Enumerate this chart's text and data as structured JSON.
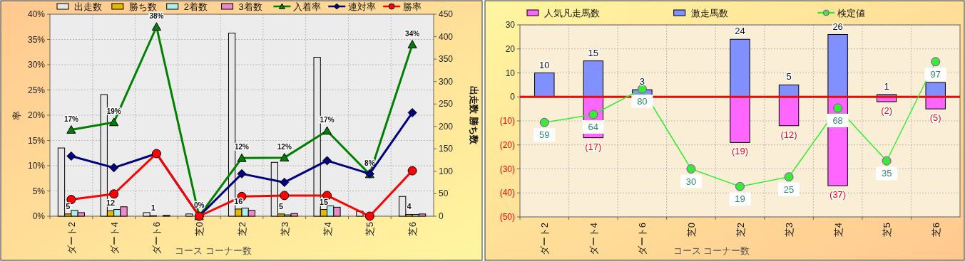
{
  "chart_data": [
    {
      "type": "bar",
      "xlabel": "コース コーナー数",
      "ylabel": "率",
      "y2label": "出走数 勝ち数",
      "categories": [
        "ダート2",
        "ダート4",
        "ダート6",
        "芝0",
        "芝2",
        "芝3",
        "芝4",
        "芝5",
        "芝6"
      ],
      "series": [
        {
          "name": "出走数",
          "color": "#e8e8e8",
          "axis": "y2",
          "values": [
            152,
            271,
            8,
            5,
            408,
            120,
            354,
            11,
            44
          ]
        },
        {
          "name": "勝ち数",
          "color": "#e6b800",
          "axis": "y2",
          "values": [
            5,
            12,
            1,
            0,
            16,
            5,
            15,
            0,
            4
          ],
          "value_labels": [
            "5",
            "12",
            "1",
            null,
            "16",
            "5",
            "15",
            null,
            "4"
          ]
        },
        {
          "name": "2着数",
          "color": "#aeeeee",
          "axis": "y2",
          "values": [
            13,
            15,
            0,
            0,
            18,
            3,
            23,
            0,
            4
          ]
        },
        {
          "name": "3着数",
          "color": "#ee88cc",
          "axis": "y2",
          "values": [
            8,
            21,
            2,
            0,
            13,
            6,
            20,
            0,
            5
          ]
        },
        {
          "name": "入着率",
          "type": "line",
          "color": "#008000",
          "marker": "triangle",
          "values": [
            17.1,
            18.6,
            37.5,
            0,
            11.5,
            11.6,
            16.9,
            8.3,
            34.0
          ],
          "value_labels": [
            "17%",
            "19%",
            "38%",
            "0%",
            "12%",
            "12%",
            "17%",
            "8%",
            "34%"
          ]
        },
        {
          "name": "連対率",
          "type": "line",
          "color": "#000080",
          "marker": "diamond",
          "values": [
            11.9,
            9.6,
            12.4,
            0,
            8.4,
            6.7,
            11.0,
            8.4,
            20.5
          ]
        },
        {
          "name": "勝率",
          "type": "line",
          "color": "#ff0000",
          "marker": "circle",
          "values": [
            3.3,
            4.4,
            12.4,
            0,
            3.9,
            4.1,
            4.1,
            0,
            9.0
          ]
        }
      ],
      "ylim": [
        0,
        40
      ],
      "yticks": [
        {
          "value": 0,
          "label": "0%"
        },
        {
          "value": 5,
          "label": "5%"
        },
        {
          "value": 10,
          "label": "10%"
        },
        {
          "value": 15,
          "label": "15%"
        },
        {
          "value": 20,
          "label": "20%"
        },
        {
          "value": 25,
          "label": "25%"
        },
        {
          "value": 30,
          "label": "30%"
        },
        {
          "value": 35,
          "label": "35%"
        },
        {
          "value": 40,
          "label": "40%"
        }
      ],
      "y2lim": [
        0,
        450
      ],
      "y2ticks": [
        0,
        50,
        100,
        150,
        200,
        250,
        300,
        350,
        400,
        450
      ],
      "grid": true,
      "legend": "top"
    },
    {
      "type": "bar",
      "xlabel": "コース コーナー数",
      "stacked": true,
      "categories": [
        "ダート2",
        "ダート4",
        "ダート6",
        "芝0",
        "芝2",
        "芝3",
        "芝4",
        "芝5",
        "芝6"
      ],
      "series": [
        {
          "name": "人気凡走馬数",
          "color": "#ff66ff",
          "values": [
            0,
            -17,
            0,
            0,
            -19,
            -12,
            -37,
            -2,
            -5
          ],
          "value_labels": [
            null,
            "(17)",
            null,
            null,
            "(19)",
            "(12)",
            "(37)",
            "(2)",
            "(5)"
          ]
        },
        {
          "name": "激走馬数",
          "color": "#8090ff",
          "values": [
            10,
            15,
            3,
            0,
            24,
            5,
            26,
            1,
            6
          ],
          "value_labels": [
            "10",
            "15",
            "3",
            null,
            "24",
            "5",
            "26",
            "1",
            null
          ]
        },
        {
          "name": "検定値",
          "type": "line",
          "axis": "y2",
          "color": "#33ee33",
          "marker": "circle",
          "values": [
            59,
            64,
            80,
            30,
            19,
            25,
            68,
            35,
            97
          ],
          "data_labels": true
        }
      ],
      "ylim": [
        -50,
        30
      ],
      "yticks": [
        {
          "value": -50,
          "label": "(50)"
        },
        {
          "value": -40,
          "label": "(40)"
        },
        {
          "value": -30,
          "label": "(30)"
        },
        {
          "value": -20,
          "label": "(20)"
        },
        {
          "value": -10,
          "label": "(10)"
        },
        0,
        10,
        20,
        30
      ],
      "y2lim": [
        0,
        120
      ],
      "ref_lines": [
        {
          "axis": "y",
          "value": 0,
          "color": "#ff0000"
        }
      ],
      "grid": true,
      "legend": "top"
    }
  ]
}
